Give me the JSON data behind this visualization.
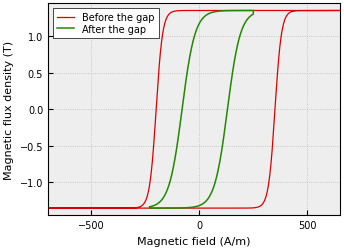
{
  "xlabel": "Magnetic field (A/m)",
  "ylabel": "Magnetic flux density (T)",
  "xlim": [
    -700,
    650
  ],
  "ylim": [
    -1.45,
    1.45
  ],
  "xticks": [
    -500,
    0,
    500
  ],
  "yticks": [
    -1,
    -0.5,
    0,
    0.5,
    1
  ],
  "legend": [
    "Before the gap",
    "After the gap"
  ],
  "red_color": "#dd0000",
  "green_color": "#228800",
  "background_color": "#eeeeee",
  "grid_color": "#bbbbbb"
}
